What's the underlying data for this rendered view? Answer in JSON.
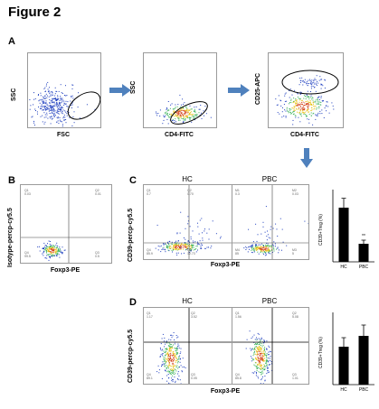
{
  "figure": {
    "title": "Figure 2"
  },
  "panels": {
    "A": {
      "letter": "A",
      "plot1": {
        "xlabel": "FSC",
        "ylabel": "SSC"
      },
      "plot2": {
        "xlabel": "CD4-FITC",
        "ylabel": "SSC"
      },
      "plot3": {
        "xlabel": "CD4-FITC",
        "ylabel": "CD25-APC"
      }
    },
    "B": {
      "letter": "B",
      "xlabel": "Foxp3-PE",
      "ylabel": "Isotype-percp-cy5.5",
      "quadrants": {
        "ul": "Q1",
        "ul_val": "0.03",
        "ur": "Q2",
        "ur_val": "0.01",
        "ll": "Q4",
        "ll_val": "99.5",
        "lr": "Q3",
        "lr_val": "0.5"
      }
    },
    "C": {
      "letter": "C",
      "xlabel": "Foxp3-PE",
      "ylabel": "CD39-percp-cy5.5",
      "group1": "HC",
      "group2": "PBC",
      "hc_quadrants": {
        "ul": "Q1",
        "ul_val": "0.7",
        "ur": "Q2",
        "ur_val": "0.70",
        "ll": "Q4",
        "ll_val": "85.9",
        "lr": "Q3",
        "lr_val": "12.73"
      },
      "pbc_quadrants": {
        "ul": "M1",
        "ul_val": "0.3",
        "ur": "M2",
        "ur_val": "0.03",
        "ll": "M4",
        "ll_val": "85",
        "lr": "M3",
        "lr_val": "5"
      },
      "chart_data": {
        "type": "bar",
        "categories": [
          "HC",
          "PBC"
        ],
        "values": [
          7.5,
          2.5
        ],
        "errors": [
          1.3,
          0.5
        ],
        "ylabel": "CD39+Treg (%)",
        "annotation": "**"
      }
    },
    "D": {
      "letter": "D",
      "xlabel": "Foxp3-PE",
      "ylabel": "CD39-percp-cy5.5",
      "group1": "HC",
      "group2": "PBC",
      "hc_quadrants": {
        "ul": "Q1",
        "ul_val": "1.17",
        "ur": "Q2",
        "ur_val": "3.52",
        "ll": "Q4",
        "ll_val": "89.1",
        "lr": "Q3",
        "lr_val": "0.05"
      },
      "pbc_quadrants": {
        "ul": "Q1",
        "ul_val": "1.56",
        "ur": "Q2",
        "ur_val": "5.08",
        "ll": "Q4",
        "ll_val": "85.8",
        "lr": "Q3",
        "lr_val": "1.01"
      },
      "chart_data": {
        "type": "bar",
        "categories": [
          "HC",
          "PBC"
        ],
        "values": [
          4.2,
          5.4
        ],
        "errors": [
          1.0,
          1.2
        ],
        "ylabel": "CD39+Treg (%)"
      }
    }
  },
  "colors": {
    "arrow": "#4f81bd",
    "bar": "#000000",
    "dots_cold": "#1f3fbf",
    "dots_warm": "#e8c21a"
  }
}
